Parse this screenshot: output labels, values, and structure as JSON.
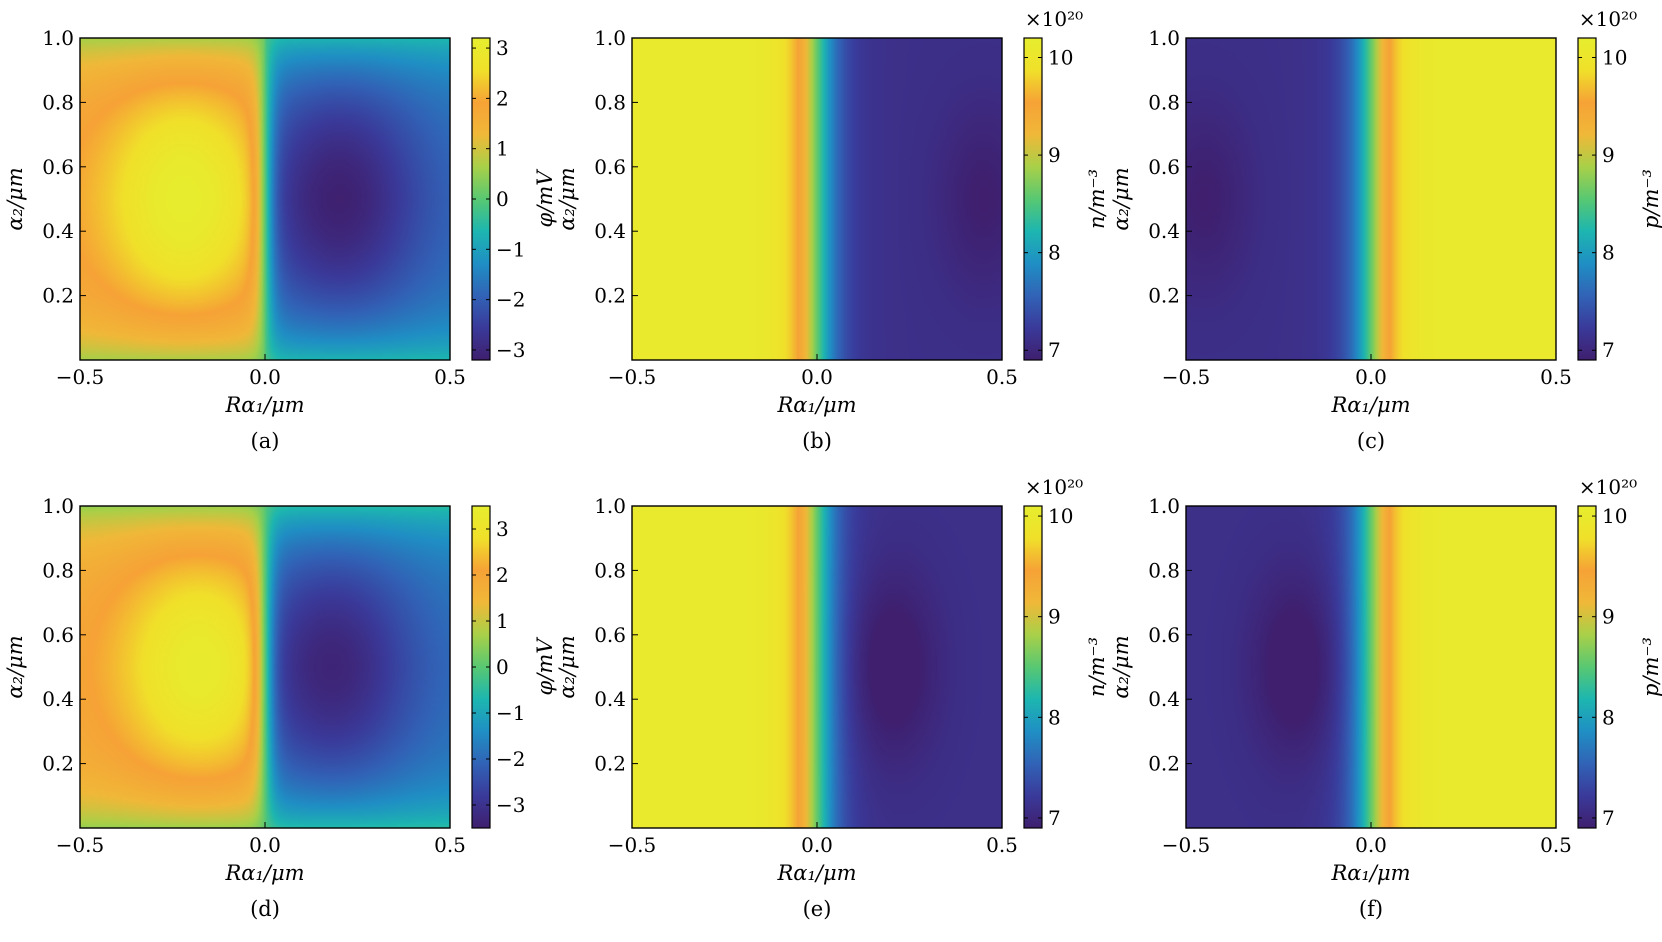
{
  "colormap": [
    "#3f1f6e",
    "#3a3a9a",
    "#3163b6",
    "#1f8fc4",
    "#1db6b0",
    "#58c872",
    "#a8d048",
    "#f0b838",
    "#f6a236",
    "#f0e02a",
    "#e6ee2e"
  ],
  "chart_data": [
    {
      "type": "heatmap",
      "panel": "(a)",
      "quantity": "phi",
      "xlabel": "Rα₁/μm",
      "ylabel": "α₂/μm",
      "colorbar_label": "φ/mV",
      "colorbar_multiplier": "",
      "xlim": [
        -0.5,
        0.5
      ],
      "ylim": [
        0.0,
        1.0
      ],
      "x_ticks": [
        -0.5,
        0.0,
        0.5
      ],
      "x_tick_labels": [
        "−0.5",
        "0.0",
        "0.5"
      ],
      "y_ticks": [
        0.2,
        0.4,
        0.6,
        0.8,
        1.0
      ],
      "y_tick_labels": [
        "0.2",
        "0.4",
        "0.6",
        "0.8",
        "1.0"
      ],
      "clim": [
        -3.2,
        3.2
      ],
      "colorbar_ticks": [
        3,
        2,
        1,
        0,
        -1,
        -2,
        -3
      ],
      "colorbar_tick_labels": [
        "3",
        "2",
        "1",
        "0",
        "−1",
        "−2",
        "−3"
      ],
      "field": {
        "extreme_left_x": -0.22,
        "extreme_right_x": 0.2,
        "center_y": 0.5,
        "peak_value": 3.2,
        "edge_value": 0.3
      }
    },
    {
      "type": "heatmap",
      "panel": "(b)",
      "quantity": "n",
      "xlabel": "Rα₁/μm",
      "ylabel": "α₂/μm",
      "colorbar_label": "n/m⁻³",
      "colorbar_multiplier": "×10²⁰",
      "xlim": [
        -0.5,
        0.5
      ],
      "ylim": [
        0.0,
        1.0
      ],
      "x_ticks": [
        -0.5,
        0.0,
        0.5
      ],
      "x_tick_labels": [
        "−0.5",
        "0.0",
        "0.5"
      ],
      "y_ticks": [
        0.2,
        0.4,
        0.6,
        0.8,
        1.0
      ],
      "y_tick_labels": [
        "0.2",
        "0.4",
        "0.6",
        "0.8",
        "1.0"
      ],
      "clim": [
        6.9,
        10.2
      ],
      "colorbar_ticks": [
        10,
        9,
        8,
        7
      ],
      "colorbar_tick_labels": [
        "10",
        "9",
        "8",
        "7"
      ],
      "field": {
        "high_side": "left",
        "high_value": 10.1,
        "low_value": 7.1,
        "extreme_value": 6.9,
        "extreme_x": 0.45,
        "center_y": 0.5
      }
    },
    {
      "type": "heatmap",
      "panel": "(c)",
      "quantity": "p",
      "xlabel": "Rα₁/μm",
      "ylabel": "α₂/μm",
      "colorbar_label": "p/m⁻³",
      "colorbar_multiplier": "×10²⁰",
      "xlim": [
        -0.5,
        0.5
      ],
      "ylim": [
        0.0,
        1.0
      ],
      "x_ticks": [
        -0.5,
        0.0,
        0.5
      ],
      "x_tick_labels": [
        "−0.5",
        "0.0",
        "0.5"
      ],
      "y_ticks": [
        0.2,
        0.4,
        0.6,
        0.8,
        1.0
      ],
      "y_tick_labels": [
        "0.2",
        "0.4",
        "0.6",
        "0.8",
        "1.0"
      ],
      "clim": [
        6.9,
        10.2
      ],
      "colorbar_ticks": [
        10,
        9,
        8,
        7
      ],
      "colorbar_tick_labels": [
        "10",
        "9",
        "8",
        "7"
      ],
      "field": {
        "high_side": "right",
        "high_value": 10.1,
        "low_value": 7.1,
        "extreme_value": 6.9,
        "extreme_x": -0.45,
        "center_y": 0.5
      }
    },
    {
      "type": "heatmap",
      "panel": "(d)",
      "quantity": "phi",
      "xlabel": "Rα₁/μm",
      "ylabel": "α₂/μm",
      "colorbar_label": "φ/mV",
      "colorbar_multiplier": "",
      "xlim": [
        -0.5,
        0.5
      ],
      "ylim": [
        0.0,
        1.0
      ],
      "x_ticks": [
        -0.5,
        0.0,
        0.5
      ],
      "x_tick_labels": [
        "−0.5",
        "0.0",
        "0.5"
      ],
      "y_ticks": [
        0.2,
        0.4,
        0.6,
        0.8,
        1.0
      ],
      "y_tick_labels": [
        "0.2",
        "0.4",
        "0.6",
        "0.8",
        "1.0"
      ],
      "clim": [
        -3.5,
        3.5
      ],
      "colorbar_ticks": [
        3,
        2,
        1,
        0,
        -1,
        -2,
        -3
      ],
      "colorbar_tick_labels": [
        "3",
        "2",
        "1",
        "0",
        "−1",
        "−2",
        "−3"
      ],
      "field": {
        "extreme_left_x": -0.18,
        "extreme_right_x": 0.18,
        "center_y": 0.5,
        "peak_value": 3.4,
        "edge_value": 0.1
      }
    },
    {
      "type": "heatmap",
      "panel": "(e)",
      "quantity": "n",
      "xlabel": "Rα₁/μm",
      "ylabel": "α₂/μm",
      "colorbar_label": "n/m⁻³",
      "colorbar_multiplier": "×10²⁰",
      "xlim": [
        -0.5,
        0.5
      ],
      "ylim": [
        0.0,
        1.0
      ],
      "x_ticks": [
        -0.5,
        0.0,
        0.5
      ],
      "x_tick_labels": [
        "−0.5",
        "0.0",
        "0.5"
      ],
      "y_ticks": [
        0.2,
        0.4,
        0.6,
        0.8,
        1.0
      ],
      "y_tick_labels": [
        "0.2",
        "0.4",
        "0.6",
        "0.8",
        "1.0"
      ],
      "clim": [
        6.9,
        10.1
      ],
      "colorbar_ticks": [
        10,
        9,
        8,
        7
      ],
      "colorbar_tick_labels": [
        "10",
        "9",
        "8",
        "7"
      ],
      "field": {
        "high_side": "left",
        "high_value": 10.0,
        "low_value": 7.1,
        "extreme_value": 6.8,
        "extreme_x": 0.2,
        "center_y": 0.5
      }
    },
    {
      "type": "heatmap",
      "panel": "(f)",
      "quantity": "p",
      "xlabel": "Rα₁/μm",
      "ylabel": "α₂/μm",
      "colorbar_label": "p/m⁻³",
      "colorbar_multiplier": "×10²⁰",
      "xlim": [
        -0.5,
        0.5
      ],
      "ylim": [
        0.0,
        1.0
      ],
      "x_ticks": [
        -0.5,
        0.0,
        0.5
      ],
      "x_tick_labels": [
        "−0.5",
        "0.0",
        "0.5"
      ],
      "y_ticks": [
        0.2,
        0.4,
        0.6,
        0.8,
        1.0
      ],
      "y_tick_labels": [
        "0.2",
        "0.4",
        "0.6",
        "0.8",
        "1.0"
      ],
      "clim": [
        6.9,
        10.1
      ],
      "colorbar_ticks": [
        10,
        9,
        8,
        7
      ],
      "colorbar_tick_labels": [
        "10",
        "9",
        "8",
        "7"
      ],
      "field": {
        "high_side": "right",
        "high_value": 10.0,
        "low_value": 7.1,
        "extreme_value": 6.8,
        "extreme_x": -0.2,
        "center_y": 0.5
      }
    }
  ]
}
